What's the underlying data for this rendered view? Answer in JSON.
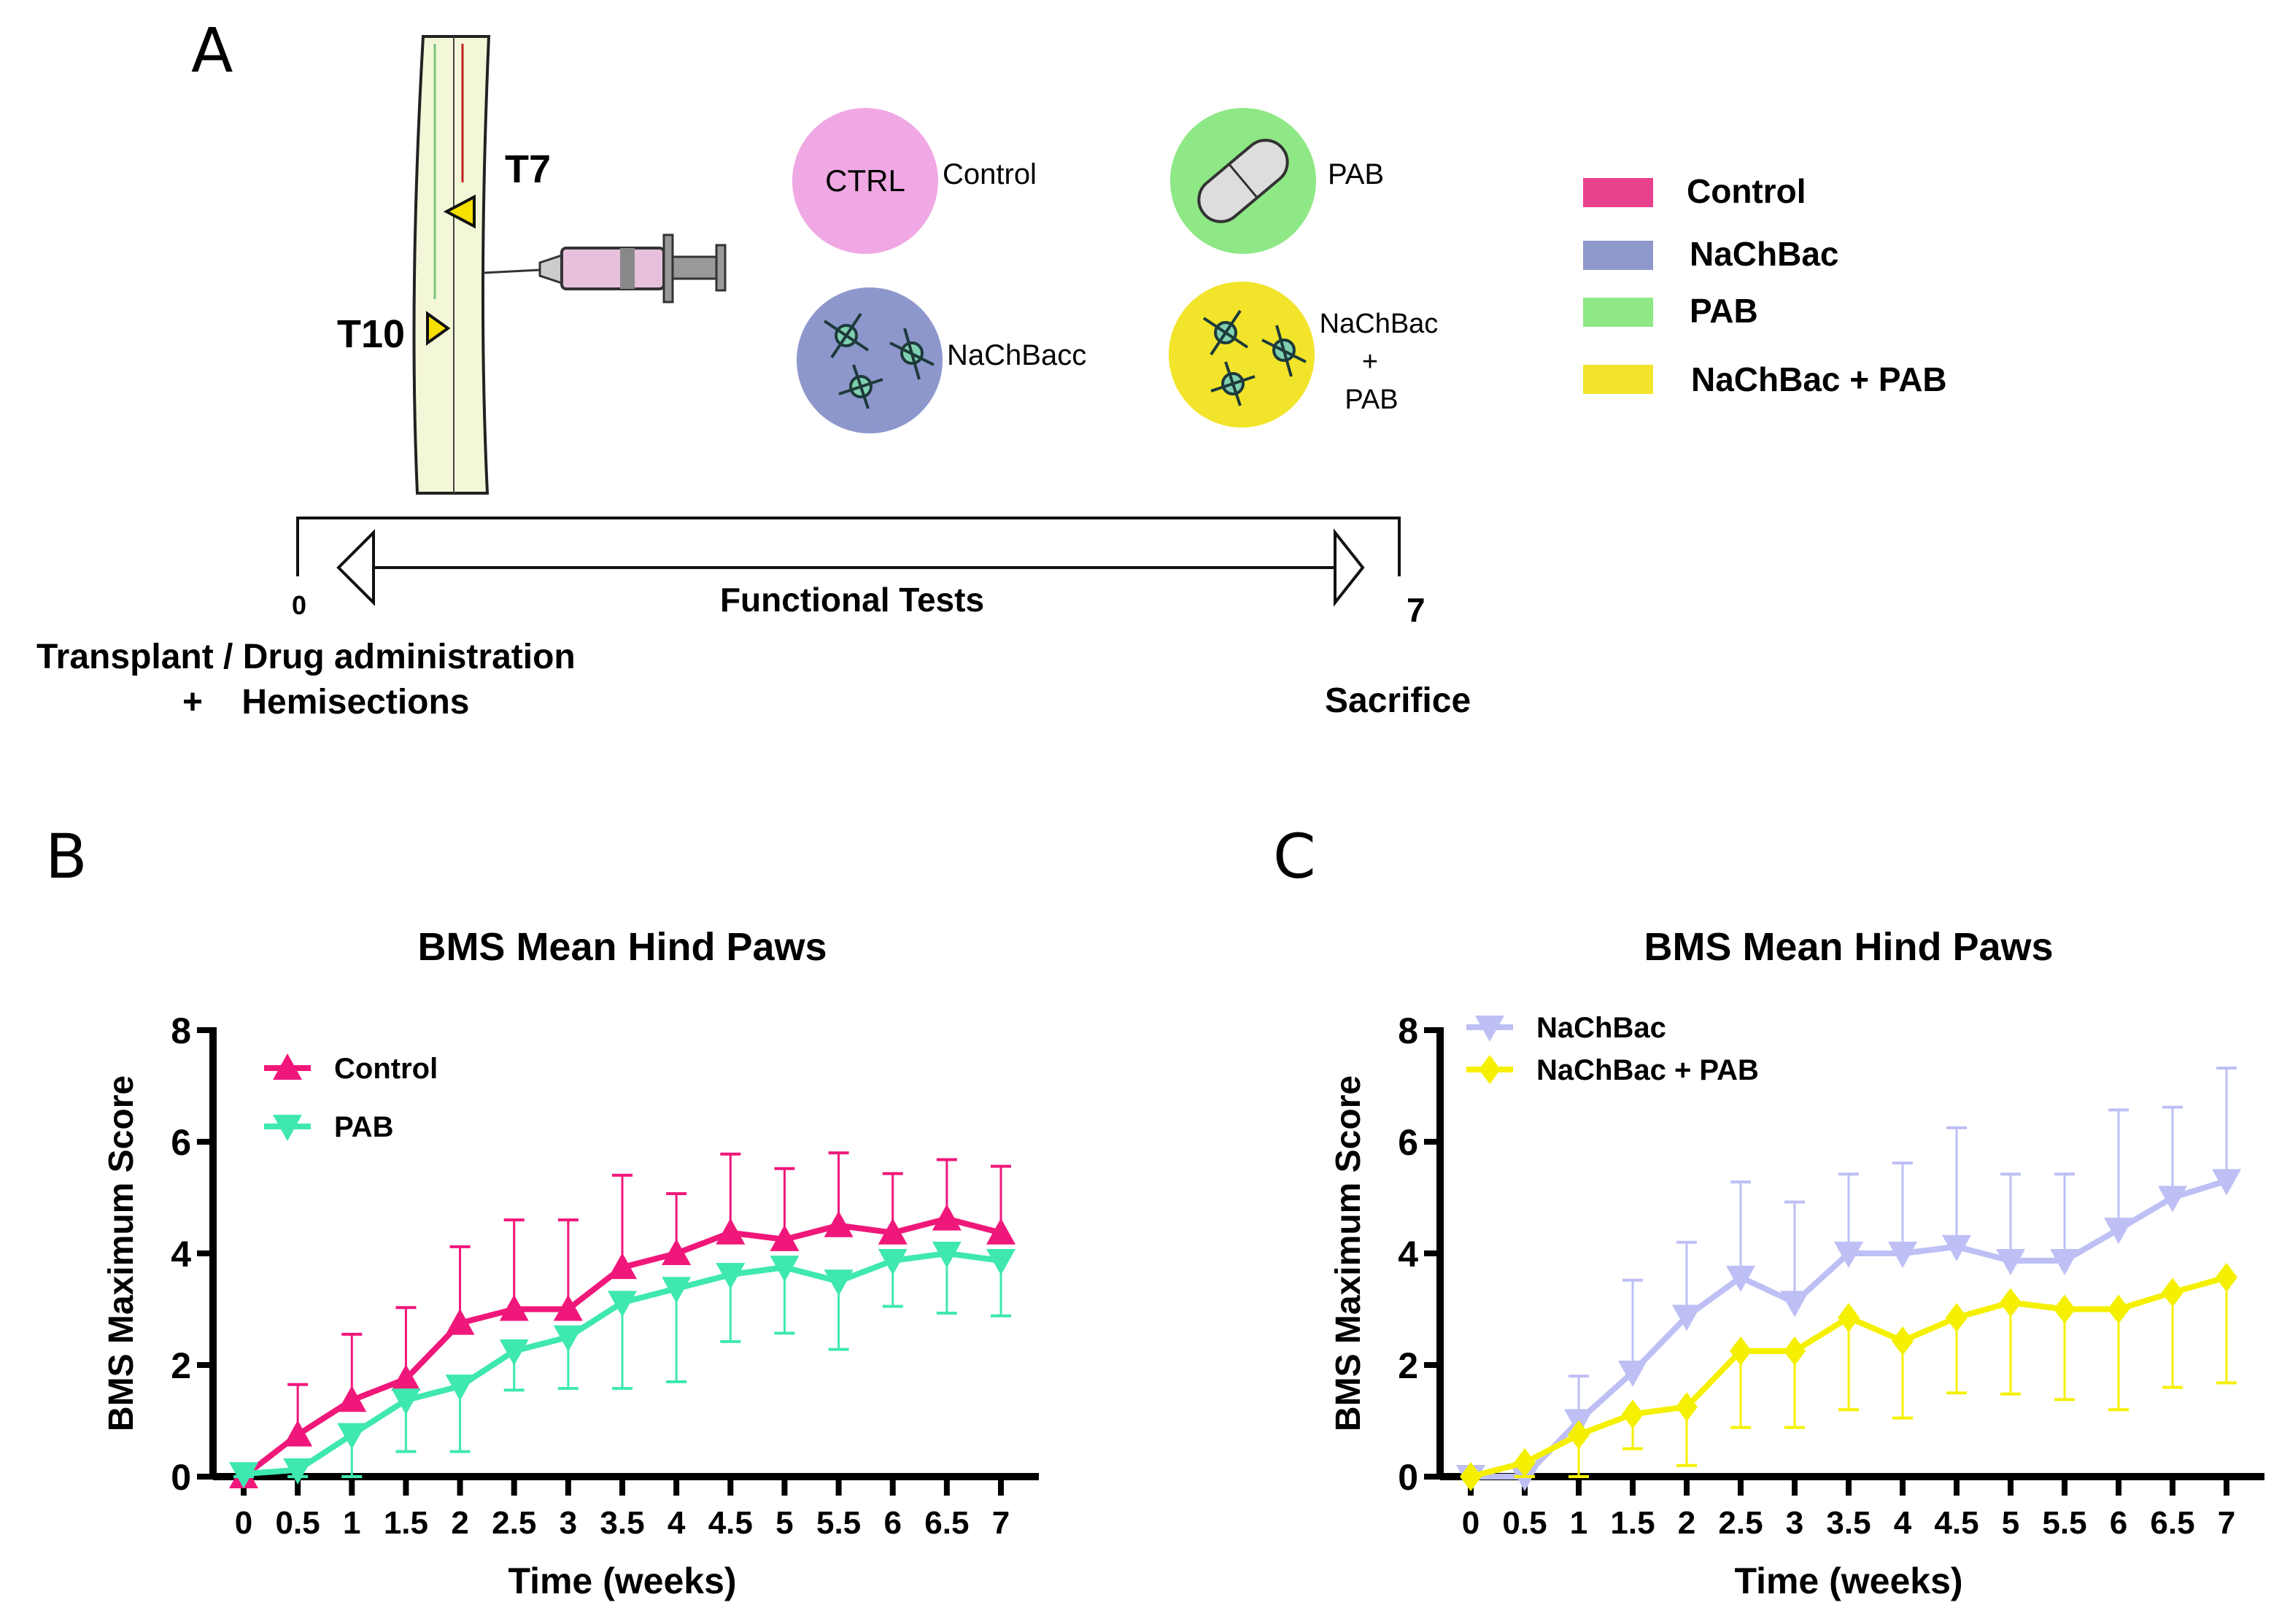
{
  "panels": {
    "a": "A",
    "b": "B",
    "c": "C"
  },
  "diagram": {
    "vertebra_t7": "T7",
    "vertebra_t10": "T10",
    "groups": [
      {
        "circle_label": "CTRL",
        "name": "Control",
        "color": "#f0a8e4"
      },
      {
        "name": "PAB",
        "color": "#8ee885"
      },
      {
        "name": "NaChBacc",
        "color": "#8d97cc"
      },
      {
        "name_lines": [
          "NaChBac",
          "+",
          "PAB"
        ],
        "color": "#f2e42a"
      }
    ],
    "legend": [
      {
        "label": "Control",
        "color": "#e8418e"
      },
      {
        "label": "NaChBac",
        "color": "#8e98cc"
      },
      {
        "label": "PAB",
        "color": "#8ee885"
      },
      {
        "label": "NaChBac + PAB",
        "color": "#f2e42a"
      }
    ],
    "timeline": {
      "start": "0",
      "end": "7",
      "middle": "Functional Tests",
      "start_caption_1": "Transplant / Drug administration",
      "start_caption_2": "+    Hemisections",
      "end_caption": "Sacrifice"
    }
  },
  "chart_data": [
    {
      "type": "line",
      "title": "BMS Mean Hind Paws",
      "xlabel": "Time (weeks)",
      "ylabel": "BMS Maximum Score",
      "ylim": [
        0,
        8
      ],
      "yticks": [
        0,
        2,
        4,
        6,
        8
      ],
      "x": [
        0,
        0.5,
        1,
        1.5,
        2,
        2.5,
        3,
        3.5,
        4,
        4.5,
        5,
        5.5,
        6,
        6.5,
        7
      ],
      "xtick_labels": [
        "0",
        "0.5",
        "1",
        "1.5",
        "2",
        "2.5",
        "3",
        "3.5",
        "4",
        "4.5",
        "5",
        "5.5",
        "6",
        "6.5",
        "7"
      ],
      "legend_position": "top-left",
      "series": [
        {
          "name": "Control",
          "color": "#f0177a",
          "marker": "triangle-up",
          "error_direction": "up",
          "values": [
            0,
            0.75,
            1.37,
            1.75,
            2.75,
            3,
            3,
            3.75,
            4,
            4.37,
            4.25,
            4.5,
            4.37,
            4.62,
            4.37
          ],
          "error_bound": [
            0,
            1.65,
            2.55,
            3.03,
            4.12,
            4.6,
            4.6,
            5.4,
            5.07,
            5.78,
            5.52,
            5.8,
            5.43,
            5.68,
            5.56
          ]
        },
        {
          "name": "PAB",
          "color": "#3ee8b0",
          "marker": "triangle-down",
          "error_direction": "down",
          "values": [
            0.05,
            0.12,
            0.75,
            1.37,
            1.62,
            2.25,
            2.5,
            3.12,
            3.37,
            3.62,
            3.75,
            3.5,
            3.87,
            4,
            3.87
          ],
          "error_bound": [
            0,
            0,
            0,
            0.45,
            0.45,
            1.55,
            1.58,
            1.58,
            1.7,
            2.42,
            2.57,
            2.28,
            3.05,
            2.93,
            2.88
          ]
        }
      ]
    },
    {
      "type": "line",
      "title": "BMS Mean Hind Paws",
      "xlabel": "Time (weeks)",
      "ylabel": "BMS Maximum Score",
      "ylim": [
        0,
        8
      ],
      "yticks": [
        0,
        2,
        4,
        6,
        8
      ],
      "x": [
        0,
        0.5,
        1,
        1.5,
        2,
        2.5,
        3,
        3.5,
        4,
        4.5,
        5,
        5.5,
        6,
        6.5,
        7
      ],
      "xtick_labels": [
        "0",
        "0.5",
        "1",
        "1.5",
        "2",
        "2.5",
        "3",
        "3.5",
        "4",
        "4.5",
        "5",
        "5.5",
        "6",
        "6.5",
        "7"
      ],
      "legend_position": "top-left",
      "series": [
        {
          "name": "NaChBac",
          "color": "#bdbff5",
          "marker": "triangle-down",
          "error_direction": "up",
          "values": [
            0,
            0,
            1.0,
            1.87,
            2.87,
            3.57,
            3.12,
            4,
            4,
            4.12,
            3.87,
            3.87,
            4.43,
            5,
            5.3
          ],
          "error_bound": [
            0.1,
            0,
            1.8,
            3.52,
            4.2,
            5.28,
            4.92,
            5.42,
            5.62,
            6.25,
            5.42,
            5.42,
            6.57,
            6.62,
            7.32
          ]
        },
        {
          "name": "NaChBac + PAB",
          "color": "#f5f000",
          "marker": "diamond",
          "error_direction": "down",
          "values": [
            0,
            0.25,
            0.75,
            1.12,
            1.25,
            2.25,
            2.25,
            2.85,
            2.43,
            2.85,
            3.12,
            3,
            3,
            3.3,
            3.57
          ],
          "error_bound": [
            0,
            0,
            0,
            0.5,
            0.2,
            0.88,
            0.88,
            1.2,
            1.05,
            1.5,
            1.48,
            1.38,
            1.2,
            1.6,
            1.68
          ]
        }
      ]
    }
  ]
}
